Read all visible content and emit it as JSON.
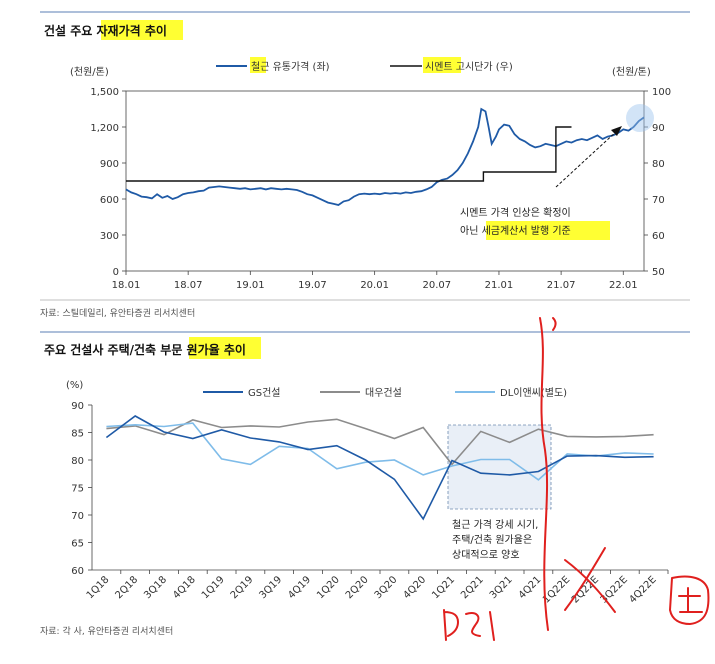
{
  "chart_data": [
    {
      "type": "line",
      "title": "건설 주요 자재가격 추이",
      "title_highlight": "자재가격 추이",
      "y_left_unit": "(천원/톤)",
      "y_right_unit": "(천원/톤)",
      "ylim_left": [
        0,
        1500
      ],
      "ylim_right": [
        50,
        100
      ],
      "yticks_left": [
        "1,500",
        "1,200",
        "900",
        "600",
        "300",
        "0"
      ],
      "yticks_right": [
        "100",
        "90",
        "80",
        "70",
        "60",
        "50"
      ],
      "x_labels": [
        "18.01",
        "18.07",
        "19.01",
        "19.07",
        "20.01",
        "20.07",
        "21.01",
        "21.07",
        "22.01"
      ],
      "x_range_months": [
        0,
        50
      ],
      "series": [
        {
          "name": "철근 유통가격 (좌)",
          "axis": "left",
          "color": "#1f5aa6",
          "points": [
            [
              0,
              680
            ],
            [
              0.5,
              655
            ],
            [
              1,
              640
            ],
            [
              1.5,
              620
            ],
            [
              2,
              615
            ],
            [
              2.5,
              605
            ],
            [
              3,
              640
            ],
            [
              3.5,
              610
            ],
            [
              4,
              625
            ],
            [
              4.5,
              600
            ],
            [
              5,
              615
            ],
            [
              5.5,
              640
            ],
            [
              6,
              650
            ],
            [
              6.5,
              655
            ],
            [
              7,
              665
            ],
            [
              7.5,
              670
            ],
            [
              8,
              695
            ],
            [
              8.5,
              700
            ],
            [
              9,
              705
            ],
            [
              9.5,
              700
            ],
            [
              10,
              695
            ],
            [
              10.5,
              690
            ],
            [
              11,
              685
            ],
            [
              11.5,
              690
            ],
            [
              12,
              680
            ],
            [
              12.5,
              685
            ],
            [
              13,
              690
            ],
            [
              13.5,
              680
            ],
            [
              14,
              690
            ],
            [
              14.5,
              685
            ],
            [
              15,
              680
            ],
            [
              15.5,
              685
            ],
            [
              16,
              680
            ],
            [
              16.5,
              675
            ],
            [
              17,
              660
            ],
            [
              17.5,
              640
            ],
            [
              18,
              630
            ],
            [
              18.5,
              610
            ],
            [
              19,
              590
            ],
            [
              19.5,
              570
            ],
            [
              20,
              560
            ],
            [
              20.5,
              550
            ],
            [
              21,
              580
            ],
            [
              21.5,
              590
            ],
            [
              22,
              620
            ],
            [
              22.5,
              640
            ],
            [
              23,
              645
            ],
            [
              23.5,
              640
            ],
            [
              24,
              645
            ],
            [
              24.5,
              640
            ],
            [
              25,
              650
            ],
            [
              25.5,
              645
            ],
            [
              26,
              650
            ],
            [
              26.5,
              645
            ],
            [
              27,
              655
            ],
            [
              27.5,
              650
            ],
            [
              28,
              660
            ],
            [
              28.5,
              665
            ],
            [
              29,
              680
            ],
            [
              29.5,
              700
            ],
            [
              30,
              740
            ],
            [
              30.5,
              760
            ],
            [
              31,
              770
            ],
            [
              31.5,
              800
            ],
            [
              32,
              840
            ],
            [
              32.5,
              900
            ],
            [
              33,
              980
            ],
            [
              33.5,
              1080
            ],
            [
              34,
              1200
            ],
            [
              34.3,
              1350
            ],
            [
              34.7,
              1330
            ],
            [
              35,
              1200
            ],
            [
              35.3,
              1060
            ],
            [
              35.7,
              1120
            ],
            [
              36,
              1180
            ],
            [
              36.5,
              1220
            ],
            [
              37,
              1210
            ],
            [
              37.5,
              1140
            ],
            [
              38,
              1100
            ],
            [
              38.5,
              1080
            ],
            [
              39,
              1050
            ],
            [
              39.5,
              1030
            ],
            [
              40,
              1040
            ],
            [
              40.5,
              1060
            ],
            [
              41,
              1050
            ],
            [
              41.5,
              1040
            ],
            [
              42,
              1060
            ],
            [
              42.5,
              1080
            ],
            [
              43,
              1070
            ],
            [
              43.5,
              1090
            ],
            [
              44,
              1100
            ],
            [
              44.5,
              1090
            ],
            [
              45,
              1110
            ],
            [
              45.5,
              1130
            ],
            [
              46,
              1100
            ],
            [
              46.5,
              1120
            ],
            [
              47,
              1130
            ],
            [
              47.5,
              1150
            ],
            [
              48,
              1180
            ],
            [
              48.5,
              1170
            ],
            [
              49,
              1200
            ],
            [
              49.5,
              1250
            ],
            [
              50,
              1280
            ]
          ]
        },
        {
          "name": "시멘트 고시단가 (우)",
          "axis": "right",
          "color": "#111111",
          "points": [
            [
              0,
              75
            ],
            [
              34.5,
              75
            ],
            [
              34.5,
              77.5
            ],
            [
              41.5,
              77.5
            ],
            [
              41.5,
              90
            ],
            [
              43,
              90
            ]
          ]
        }
      ],
      "annotation": {
        "lines": [
          "시멘트 가격 인상은 확정이",
          "아닌 세금계산서 발행 기준"
        ],
        "highlight": "세금계산서 발행 기준"
      },
      "source": "자료: 스틸데일리, 유안타증권 리서치센터"
    },
    {
      "type": "line",
      "title": "주요 건설사 주택/건축 부문 원가율 추이",
      "title_highlight": "원가율 추이",
      "y_unit": "(%)",
      "ylim": [
        60,
        90
      ],
      "yticks": [
        "90",
        "85",
        "80",
        "75",
        "70",
        "65",
        "60"
      ],
      "categories": [
        "1Q18",
        "2Q18",
        "3Q18",
        "4Q18",
        "1Q19",
        "2Q19",
        "3Q19",
        "4Q19",
        "1Q20",
        "2Q20",
        "3Q20",
        "4Q20",
        "1Q21",
        "2Q21",
        "3Q21",
        "4Q21",
        "1Q22E",
        "2Q22E",
        "3Q22E",
        "4Q22E"
      ],
      "series": [
        {
          "name": "GS건설",
          "color": "#1f5aa6",
          "values": [
            84.1,
            88.0,
            85.1,
            83.9,
            85.5,
            84.0,
            83.3,
            81.9,
            82.6,
            80.0,
            76.5,
            69.3,
            79.9,
            77.6,
            77.3,
            77.9,
            80.7,
            80.8,
            80.5,
            80.6
          ]
        },
        {
          "name": "대우건설",
          "color": "#8c8c8c",
          "values": [
            85.7,
            86.2,
            84.6,
            87.3,
            85.9,
            86.2,
            86.0,
            86.9,
            87.4,
            85.7,
            83.9,
            85.9,
            79.2,
            85.2,
            83.2,
            85.6,
            84.3,
            84.2,
            84.3,
            84.6
          ]
        },
        {
          "name": "DL이앤씨(별도)",
          "color": "#7fbce9",
          "values": [
            86.1,
            86.4,
            86.1,
            86.7,
            80.2,
            79.2,
            82.5,
            82.1,
            78.4,
            79.6,
            80.0,
            77.3,
            78.9,
            80.1,
            80.1,
            76.4,
            81.1,
            80.7,
            81.3,
            81.1
          ]
        }
      ],
      "annotation": {
        "lines": [
          "철근 가격 강세 시기,",
          "주택/건축 원가율은",
          "상대적으로 양호"
        ]
      },
      "source": "자료: 각 사, 유안타증권 리서치센터"
    }
  ]
}
